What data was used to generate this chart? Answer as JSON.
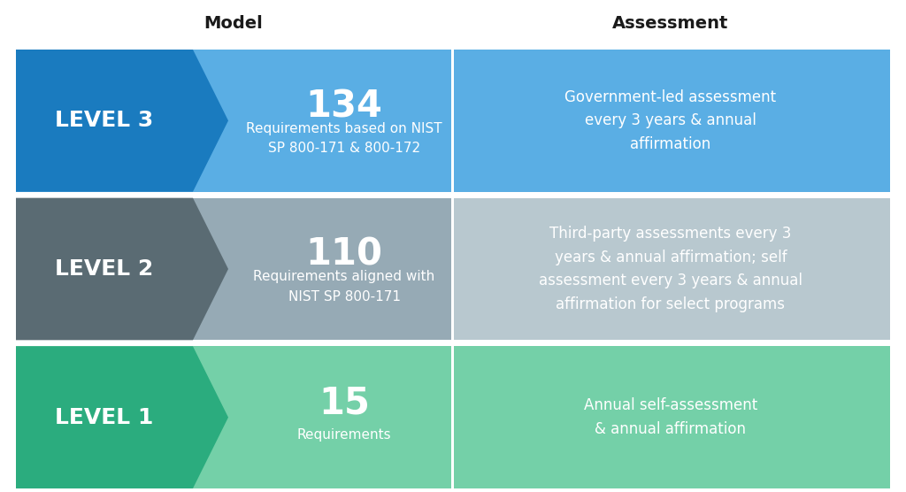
{
  "title_model": "Model",
  "title_assessment": "Assessment",
  "background_color": "#ffffff",
  "rows": [
    {
      "level_label": "LEVEL 3",
      "level_bg": "#1a7bbf",
      "arrow_bg": "#5aaee4",
      "number": "134",
      "model_text": "Requirements based on NIST\nSP 800-171 & 800-172",
      "assessment_text": "Government-led assessment\nevery 3 years & annual\naffirmation",
      "assessment_bg": "#5aaee4",
      "row_bg": "#5aaee4"
    },
    {
      "level_label": "LEVEL 2",
      "level_bg": "#5a6b73",
      "arrow_bg": "#96aab5",
      "number": "110",
      "model_text": "Requirements aligned with\nNIST SP 800-171",
      "assessment_text": "Third-party assessments every 3\nyears & annual affirmation; self\nassessment every 3 years & annual\naffirmation for select programs",
      "assessment_bg": "#b8c8cf",
      "row_bg": "#96aab5"
    },
    {
      "level_label": "LEVEL 1",
      "level_bg": "#2bac7e",
      "arrow_bg": "#74d0a8",
      "number": "15",
      "model_text": "Requirements",
      "assessment_text": "Annual self-assessment\n& annual affirmation",
      "assessment_bg": "#74d0a8",
      "row_bg": "#74d0a8"
    }
  ],
  "header_fontsize": 14,
  "level_fontsize": 18,
  "number_fontsize": 30,
  "model_text_fontsize": 11,
  "assessment_text_fontsize": 12
}
